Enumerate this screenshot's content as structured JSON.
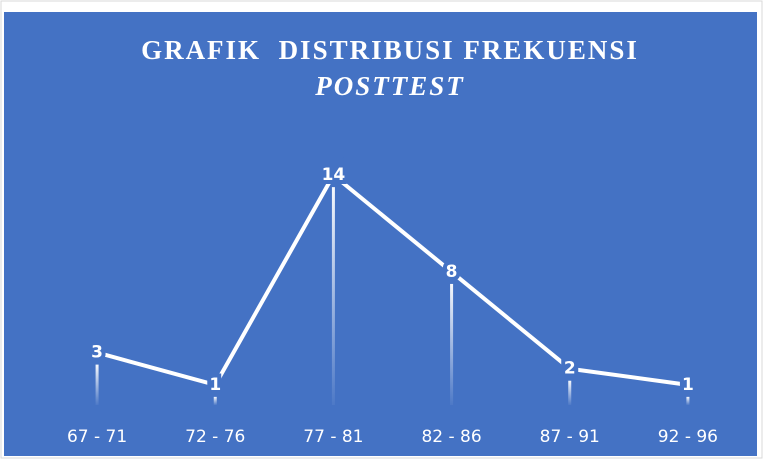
{
  "chart_data": {
    "type": "line",
    "title": "GRAFIK  DISTRIBUSI FREKUENSI",
    "subtitle": "POSTTEST",
    "categories": [
      "67 - 71",
      "72 - 76",
      "77 - 81",
      "82 - 86",
      "87 - 91",
      "92 - 96"
    ],
    "values": [
      3,
      1,
      14,
      8,
      2,
      1
    ],
    "color": "#ffffff",
    "background": "#4472c4",
    "ylim": [
      0,
      15
    ],
    "drop_lines": true
  }
}
